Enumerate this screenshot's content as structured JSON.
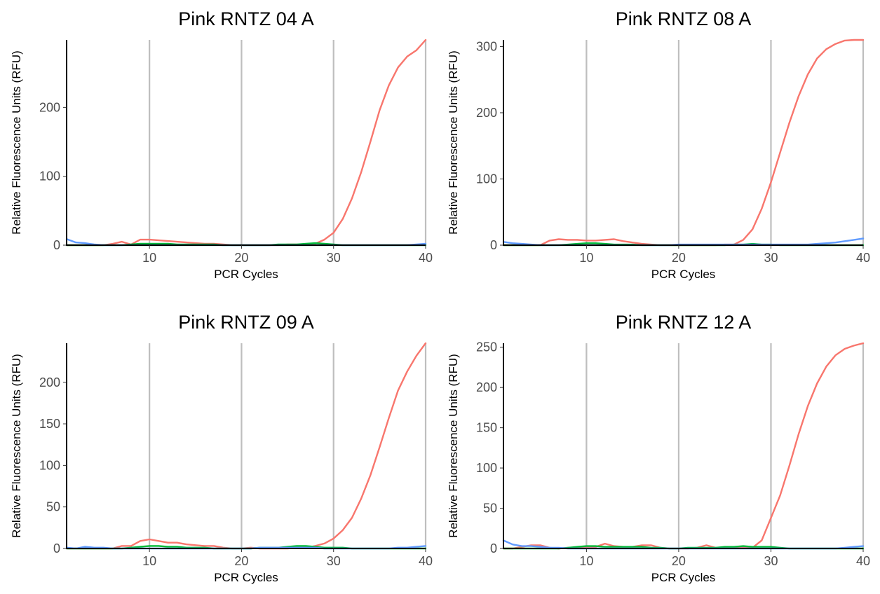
{
  "chart_data": [
    {
      "type": "line",
      "title": "Pink RNTZ 04 A",
      "xlabel": "PCR Cycles",
      "ylabel": "Relative Fluorescence Units (RFU)",
      "xlim": [
        1,
        40
      ],
      "ylim": [
        0,
        298
      ],
      "xticks": [
        10,
        20,
        30,
        40
      ],
      "yticks": [
        0,
        100,
        200
      ],
      "grid": "vertical-major",
      "legend": "none",
      "x": [
        1,
        2,
        3,
        4,
        5,
        6,
        7,
        8,
        9,
        10,
        11,
        12,
        13,
        14,
        15,
        16,
        17,
        18,
        19,
        20,
        21,
        22,
        23,
        24,
        25,
        26,
        27,
        28,
        29,
        30,
        31,
        32,
        33,
        34,
        35,
        36,
        37,
        38,
        39,
        40
      ],
      "series": [
        {
          "color": "#f8766d",
          "values": [
            0,
            0,
            0,
            0,
            0,
            2,
            5,
            1,
            8,
            8,
            7,
            6,
            5,
            4,
            3,
            2,
            2,
            1,
            0,
            0,
            0,
            0,
            0,
            0,
            1,
            1,
            1,
            2,
            8,
            18,
            38,
            68,
            106,
            150,
            196,
            232,
            258,
            274,
            283,
            298
          ]
        },
        {
          "color": "#00ba38",
          "values": [
            0,
            0,
            0,
            0,
            0,
            0,
            0,
            1,
            2,
            2,
            2,
            2,
            1,
            1,
            1,
            1,
            1,
            0,
            0,
            0,
            0,
            0,
            0,
            1,
            1,
            1,
            2,
            3,
            2,
            1,
            0,
            0,
            0,
            0,
            0,
            0,
            0,
            0,
            0,
            0
          ]
        },
        {
          "color": "#619cff",
          "values": [
            9,
            4,
            3,
            1,
            0,
            0,
            0,
            0,
            0,
            0,
            0,
            0,
            0,
            0,
            0,
            0,
            0,
            0,
            0,
            0,
            0,
            0,
            0,
            0,
            0,
            0,
            0,
            0,
            0,
            0,
            0,
            0,
            0,
            0,
            0,
            0,
            0,
            0,
            1,
            2
          ]
        }
      ]
    },
    {
      "type": "line",
      "title": "Pink RNTZ 08 A",
      "xlabel": "PCR Cycles",
      "ylabel": "Relative Fluorescence Units (RFU)",
      "xlim": [
        1,
        40
      ],
      "ylim": [
        0,
        310
      ],
      "xticks": [
        10,
        20,
        30,
        40
      ],
      "yticks": [
        0,
        100,
        200,
        300
      ],
      "grid": "vertical-major",
      "legend": "none",
      "x": [
        1,
        2,
        3,
        4,
        5,
        6,
        7,
        8,
        9,
        10,
        11,
        12,
        13,
        14,
        15,
        16,
        17,
        18,
        19,
        20,
        21,
        22,
        23,
        24,
        25,
        26,
        27,
        28,
        29,
        30,
        31,
        32,
        33,
        34,
        35,
        36,
        37,
        38,
        39,
        40
      ],
      "series": [
        {
          "color": "#f8766d",
          "values": [
            0,
            0,
            0,
            0,
            0,
            7,
            9,
            8,
            8,
            7,
            7,
            8,
            9,
            6,
            4,
            2,
            1,
            0,
            0,
            0,
            0,
            0,
            0,
            0,
            1,
            1,
            8,
            24,
            55,
            95,
            140,
            185,
            225,
            258,
            282,
            296,
            304,
            309,
            310,
            310
          ]
        },
        {
          "color": "#00ba38",
          "values": [
            0,
            0,
            0,
            0,
            0,
            0,
            0,
            1,
            2,
            3,
            3,
            2,
            1,
            1,
            1,
            0,
            0,
            0,
            0,
            0,
            0,
            0,
            0,
            0,
            0,
            1,
            1,
            2,
            1,
            1,
            0,
            0,
            0,
            0,
            0,
            0,
            0,
            0,
            0,
            0
          ]
        },
        {
          "color": "#619cff",
          "values": [
            5,
            3,
            2,
            1,
            0,
            0,
            0,
            0,
            0,
            0,
            0,
            0,
            0,
            0,
            0,
            0,
            0,
            0,
            0,
            1,
            1,
            1,
            1,
            1,
            1,
            1,
            1,
            1,
            1,
            1,
            1,
            1,
            1,
            1,
            2,
            3,
            4,
            6,
            8,
            10
          ]
        }
      ]
    },
    {
      "type": "line",
      "title": "Pink RNTZ 09 A",
      "xlabel": "PCR Cycles",
      "ylabel": "Relative Fluorescence Units (RFU)",
      "xlim": [
        1,
        40
      ],
      "ylim": [
        0,
        247
      ],
      "xticks": [
        10,
        20,
        30,
        40
      ],
      "yticks": [
        0,
        50,
        100,
        150,
        200
      ],
      "grid": "vertical-major",
      "legend": "none",
      "x": [
        1,
        2,
        3,
        4,
        5,
        6,
        7,
        8,
        9,
        10,
        11,
        12,
        13,
        14,
        15,
        16,
        17,
        18,
        19,
        20,
        21,
        22,
        23,
        24,
        25,
        26,
        27,
        28,
        29,
        30,
        31,
        32,
        33,
        34,
        35,
        36,
        37,
        38,
        39,
        40
      ],
      "series": [
        {
          "color": "#f8766d",
          "values": [
            0,
            0,
            0,
            0,
            0,
            0,
            3,
            3,
            9,
            11,
            9,
            7,
            7,
            5,
            4,
            3,
            3,
            1,
            0,
            0,
            1,
            0,
            0,
            0,
            0,
            1,
            1,
            3,
            6,
            12,
            22,
            37,
            60,
            88,
            122,
            157,
            190,
            213,
            232,
            247
          ]
        },
        {
          "color": "#00ba38",
          "values": [
            0,
            0,
            0,
            0,
            0,
            0,
            0,
            1,
            2,
            3,
            3,
            2,
            2,
            1,
            1,
            1,
            0,
            0,
            0,
            0,
            0,
            1,
            1,
            1,
            2,
            3,
            3,
            2,
            1,
            1,
            1,
            0,
            0,
            0,
            0,
            0,
            0,
            0,
            0,
            0
          ]
        },
        {
          "color": "#619cff",
          "values": [
            1,
            0,
            2,
            1,
            1,
            0,
            0,
            0,
            0,
            0,
            0,
            0,
            0,
            0,
            0,
            0,
            0,
            0,
            0,
            0,
            0,
            1,
            1,
            1,
            1,
            1,
            1,
            1,
            0,
            0,
            0,
            0,
            0,
            0,
            0,
            0,
            1,
            1,
            2,
            3
          ]
        }
      ]
    },
    {
      "type": "line",
      "title": "Pink RNTZ 12 A",
      "xlabel": "PCR Cycles",
      "ylabel": "Relative Fluorescence Units (RFU)",
      "xlim": [
        1,
        40
      ],
      "ylim": [
        0,
        255
      ],
      "xticks": [
        10,
        20,
        30,
        40
      ],
      "yticks": [
        0,
        50,
        100,
        150,
        200,
        250
      ],
      "grid": "vertical-major",
      "legend": "none",
      "x": [
        1,
        2,
        3,
        4,
        5,
        6,
        7,
        8,
        9,
        10,
        11,
        12,
        13,
        14,
        15,
        16,
        17,
        18,
        19,
        20,
        21,
        22,
        23,
        24,
        25,
        26,
        27,
        28,
        29,
        30,
        31,
        32,
        33,
        34,
        35,
        36,
        37,
        38,
        39,
        40
      ],
      "series": [
        {
          "color": "#f8766d",
          "values": [
            0,
            0,
            2,
            4,
            4,
            1,
            0,
            1,
            1,
            2,
            2,
            6,
            3,
            2,
            2,
            4,
            4,
            1,
            0,
            0,
            0,
            1,
            4,
            1,
            1,
            1,
            1,
            1,
            10,
            38,
            66,
            103,
            142,
            177,
            205,
            226,
            240,
            248,
            252,
            255
          ]
        },
        {
          "color": "#00ba38",
          "values": [
            0,
            0,
            0,
            0,
            0,
            0,
            0,
            1,
            2,
            3,
            3,
            2,
            2,
            2,
            2,
            2,
            1,
            1,
            0,
            0,
            1,
            1,
            1,
            1,
            2,
            2,
            3,
            2,
            2,
            2,
            1,
            0,
            0,
            0,
            0,
            0,
            0,
            0,
            0,
            0
          ]
        },
        {
          "color": "#619cff",
          "values": [
            10,
            5,
            3,
            3,
            2,
            1,
            1,
            0,
            0,
            0,
            0,
            0,
            0,
            0,
            0,
            0,
            0,
            0,
            0,
            0,
            0,
            0,
            0,
            0,
            0,
            0,
            0,
            0,
            0,
            0,
            0,
            0,
            0,
            0,
            0,
            0,
            0,
            1,
            2,
            3
          ]
        }
      ]
    }
  ]
}
